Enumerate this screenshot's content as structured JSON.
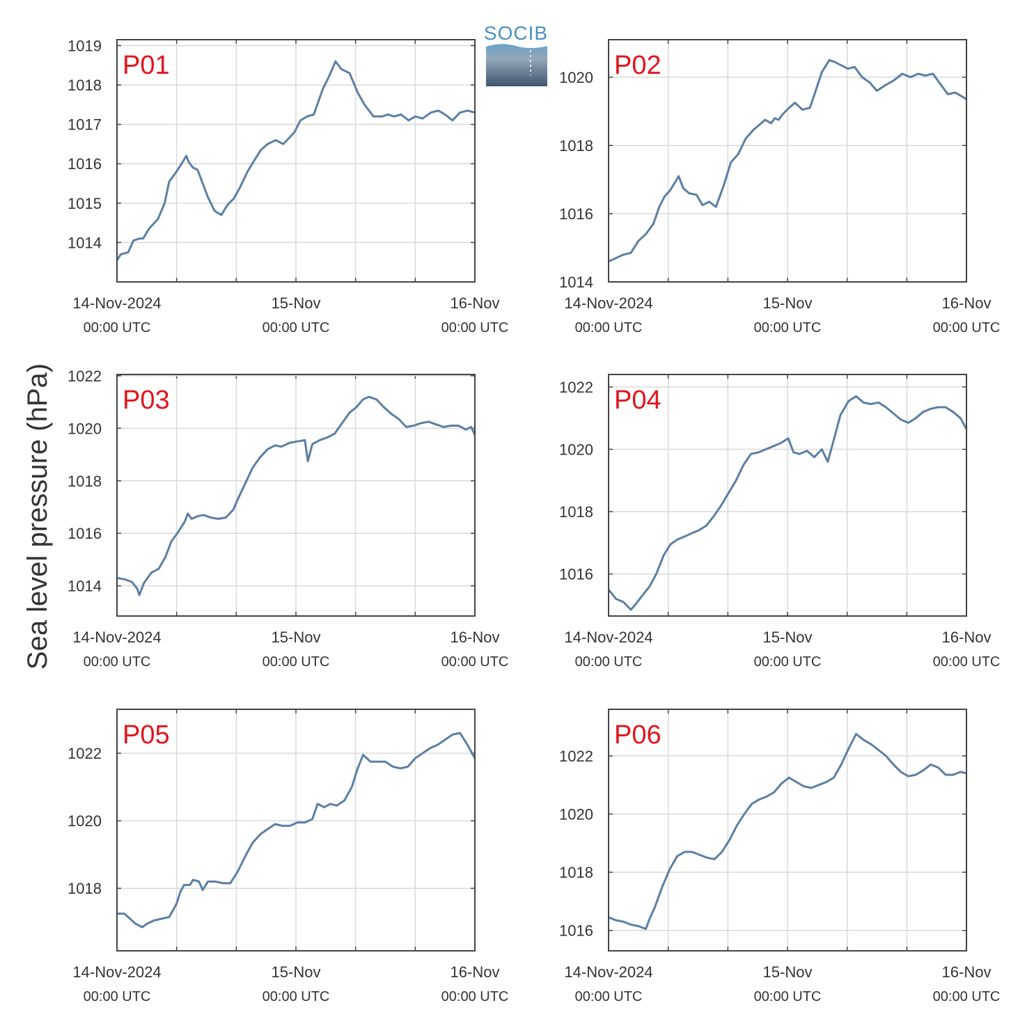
{
  "ylabel": "Sea level pressure (hPa)",
  "logo": {
    "text": "SOCIB"
  },
  "x_axis": {
    "ticks": [
      {
        "line1": "14-Nov-2024",
        "line2": "00:00 UTC",
        "hour": 0
      },
      {
        "line1": "15-Nov",
        "line2": "00:00 UTC",
        "hour": 24
      },
      {
        "line1": "16-Nov",
        "line2": "00:00 UTC",
        "hour": 48
      }
    ]
  },
  "colors": {
    "line": "#5b7fa3",
    "panel_label": "#e3141c",
    "grid": "#d9d9d9",
    "frame": "#444444"
  },
  "chart_data": [
    {
      "type": "line",
      "name": "P01",
      "grid": true,
      "xlim": [
        0,
        48
      ],
      "ylim": [
        1013,
        1019.15
      ],
      "yticks": [
        1014,
        1015,
        1016,
        1017,
        1018,
        1019
      ],
      "x": [
        0,
        0.5,
        1.5,
        2.2,
        3,
        3.5,
        4.3,
        5.5,
        6.4,
        7,
        7.8,
        8.5,
        9.3,
        9.6,
        10.2,
        10.8,
        11.5,
        12.2,
        13.1,
        14,
        14.8,
        15.3,
        15.6,
        16.5,
        17.5,
        18.3,
        19.3,
        20.2,
        21.3,
        22.3,
        23.8,
        24.6,
        25.5,
        26.4,
        27.6,
        28.4,
        29.3,
        30.1,
        31.2,
        32.3,
        33.2,
        34.4,
        35.6,
        36.3,
        37.2,
        38.1,
        39.1,
        40,
        41,
        42.1,
        43.1,
        44,
        45,
        46,
        47,
        48
      ],
      "values": [
        1013.55,
        1013.7,
        1013.75,
        1014.05,
        1014.1,
        1014.1,
        1014.35,
        1014.6,
        1015,
        1015.55,
        1015.75,
        1015.95,
        1016.2,
        1016.05,
        1015.9,
        1015.85,
        1015.5,
        1015.15,
        1014.8,
        1014.7,
        1014.95,
        1015.05,
        1015.1,
        1015.4,
        1015.8,
        1016.05,
        1016.35,
        1016.5,
        1016.6,
        1016.5,
        1016.8,
        1017.1,
        1017.2,
        1017.25,
        1017.9,
        1018.2,
        1018.6,
        1018.4,
        1018.3,
        1017.8,
        1017.5,
        1017.2,
        1017.2,
        1017.25,
        1017.2,
        1017.25,
        1017.1,
        1017.2,
        1017.15,
        1017.3,
        1017.35,
        1017.25,
        1017.1,
        1017.3,
        1017.35,
        1017.3
      ]
    },
    {
      "type": "line",
      "name": "P02",
      "grid": true,
      "xlim": [
        0,
        48
      ],
      "ylim": [
        1014,
        1021.1
      ],
      "yticks": [
        1014,
        1016,
        1018,
        1020
      ],
      "x": [
        0,
        1,
        2,
        3,
        4,
        5,
        6,
        6.8,
        7.5,
        8.3,
        9,
        9.4,
        10,
        10.8,
        11.8,
        12.6,
        13.5,
        14.4,
        15.4,
        16.4,
        17.4,
        18.4,
        19.4,
        20.2,
        21,
        21.8,
        22.3,
        22.8,
        23.3,
        24.2,
        25,
        26,
        27,
        27.7,
        28.6,
        29.6,
        30.3,
        31.2,
        32.1,
        33,
        34,
        35,
        36,
        37,
        38.2,
        39.4,
        40.5,
        41.5,
        42.5,
        43.5,
        44.5,
        45.5,
        46.5,
        47.3,
        48
      ],
      "values": [
        1014.6,
        1014.7,
        1014.8,
        1014.85,
        1015.2,
        1015.4,
        1015.7,
        1016.2,
        1016.5,
        1016.7,
        1016.95,
        1017.1,
        1016.75,
        1016.6,
        1016.55,
        1016.25,
        1016.35,
        1016.2,
        1016.8,
        1017.5,
        1017.75,
        1018.2,
        1018.45,
        1018.6,
        1018.75,
        1018.65,
        1018.8,
        1018.75,
        1018.9,
        1019.1,
        1019.25,
        1019.05,
        1019.1,
        1019.55,
        1020.15,
        1020.5,
        1020.45,
        1020.35,
        1020.25,
        1020.3,
        1020.0,
        1019.85,
        1019.6,
        1019.75,
        1019.9,
        1020.1,
        1020.0,
        1020.1,
        1020.05,
        1020.1,
        1019.8,
        1019.5,
        1019.55,
        1019.45,
        1019.35
      ]
    },
    {
      "type": "line",
      "name": "P03",
      "grid": true,
      "xlim": [
        0,
        48
      ],
      "ylim": [
        1012.85,
        1022.05
      ],
      "yticks": [
        1014,
        1016,
        1018,
        1020,
        1022
      ],
      "x": [
        0,
        1,
        2,
        2.7,
        3,
        3.6,
        4.6,
        5.6,
        6.5,
        7.3,
        8.1,
        9.1,
        9.5,
        10,
        10.8,
        11.6,
        12.6,
        13.6,
        14.6,
        15.6,
        16.2,
        17.2,
        18.2,
        19.2,
        20.2,
        21.2,
        22,
        22.8,
        23.2,
        24.2,
        25.2,
        25.6,
        26.2,
        27.2,
        28.2,
        29.2,
        30.2,
        31.2,
        32.1,
        33,
        33.8,
        34.8,
        35.8,
        36.8,
        37.8,
        38.8,
        39.8,
        40.8,
        41.8,
        42.8,
        43.8,
        44.8,
        45.8,
        46.8,
        47.5,
        48
      ],
      "values": [
        1014.3,
        1014.25,
        1014.15,
        1013.9,
        1013.65,
        1014.1,
        1014.5,
        1014.65,
        1015.1,
        1015.7,
        1016.0,
        1016.45,
        1016.75,
        1016.55,
        1016.65,
        1016.7,
        1016.6,
        1016.55,
        1016.6,
        1016.9,
        1017.3,
        1017.9,
        1018.5,
        1018.9,
        1019.2,
        1019.35,
        1019.3,
        1019.4,
        1019.45,
        1019.5,
        1019.55,
        1018.75,
        1019.4,
        1019.55,
        1019.65,
        1019.8,
        1020.2,
        1020.6,
        1020.8,
        1021.1,
        1021.2,
        1021.1,
        1020.8,
        1020.55,
        1020.35,
        1020.05,
        1020.1,
        1020.2,
        1020.25,
        1020.15,
        1020.05,
        1020.1,
        1020.1,
        1019.95,
        1020.05,
        1019.75
      ]
    },
    {
      "type": "line",
      "name": "P04",
      "grid": true,
      "xlim": [
        0,
        48
      ],
      "ylim": [
        1014.65,
        1022.4
      ],
      "yticks": [
        1016,
        1018,
        1020,
        1022
      ],
      "x": [
        0,
        1,
        2,
        3,
        3.7,
        4.5,
        5.5,
        6.4,
        7.4,
        8.3,
        9.2,
        10.2,
        11.1,
        12.1,
        13.1,
        14.1,
        15.1,
        16.1,
        17.1,
        18.1,
        19.1,
        20.1,
        21.1,
        22.1,
        23.1,
        24.1,
        24.8,
        25.6,
        26.6,
        27.6,
        28.6,
        29.4,
        30.2,
        31.1,
        32.2,
        33.2,
        34.2,
        35.2,
        36.2,
        37.2,
        38.2,
        39.2,
        40.2,
        41.2,
        42.2,
        43.2,
        44.2,
        45.2,
        46.2,
        47.2,
        48
      ],
      "values": [
        1015.5,
        1015.2,
        1015.1,
        1014.85,
        1015.05,
        1015.3,
        1015.6,
        1016.0,
        1016.6,
        1016.95,
        1017.1,
        1017.2,
        1017.3,
        1017.4,
        1017.55,
        1017.85,
        1018.2,
        1018.6,
        1019.0,
        1019.5,
        1019.85,
        1019.9,
        1020.0,
        1020.1,
        1020.2,
        1020.35,
        1019.9,
        1019.85,
        1019.95,
        1019.75,
        1020.0,
        1019.6,
        1020.3,
        1021.1,
        1021.55,
        1021.7,
        1021.5,
        1021.45,
        1021.5,
        1021.35,
        1021.15,
        1020.95,
        1020.85,
        1021.0,
        1021.2,
        1021.3,
        1021.35,
        1021.35,
        1021.2,
        1021.0,
        1020.65
      ]
    },
    {
      "type": "line",
      "name": "P05",
      "grid": true,
      "xlim": [
        0,
        48
      ],
      "ylim": [
        1016.15,
        1023.3
      ],
      "yticks": [
        1018,
        1020,
        1022
      ],
      "x": [
        0,
        1,
        2,
        2.5,
        3.4,
        4,
        5,
        6,
        7,
        8,
        8.5,
        9,
        9.8,
        10.2,
        11,
        11.5,
        12.2,
        13.2,
        14.2,
        15.2,
        16.2,
        17.2,
        18.2,
        19.2,
        20.2,
        21.2,
        22.2,
        23.2,
        24.2,
        25.2,
        26.2,
        26.9,
        27.8,
        28.6,
        29.5,
        30.5,
        31.5,
        32.2,
        33,
        34,
        35,
        36,
        37,
        38,
        39,
        40,
        41,
        42,
        43,
        44,
        45,
        46,
        47,
        48
      ],
      "values": [
        1017.25,
        1017.25,
        1017.05,
        1016.95,
        1016.85,
        1016.95,
        1017.05,
        1017.1,
        1017.15,
        1017.55,
        1017.9,
        1018.1,
        1018.1,
        1018.25,
        1018.2,
        1017.95,
        1018.2,
        1018.2,
        1018.15,
        1018.15,
        1018.5,
        1018.95,
        1019.35,
        1019.6,
        1019.75,
        1019.9,
        1019.85,
        1019.85,
        1019.95,
        1019.95,
        1020.05,
        1020.5,
        1020.4,
        1020.5,
        1020.45,
        1020.6,
        1021.0,
        1021.5,
        1021.95,
        1021.75,
        1021.75,
        1021.75,
        1021.6,
        1021.55,
        1021.6,
        1021.85,
        1022.0,
        1022.15,
        1022.25,
        1022.4,
        1022.55,
        1022.6,
        1022.25,
        1021.85
      ]
    },
    {
      "type": "line",
      "name": "P06",
      "grid": true,
      "xlim": [
        0,
        48
      ],
      "ylim": [
        1015.3,
        1023.6
      ],
      "yticks": [
        1016,
        1018,
        1020,
        1022
      ],
      "x": [
        0,
        1,
        2,
        3,
        4,
        5,
        5.5,
        6.2,
        7.2,
        8.2,
        9.2,
        10.2,
        11.2,
        12.2,
        13.2,
        14.2,
        15.2,
        16.2,
        17.2,
        18.2,
        19.2,
        20.2,
        21.2,
        22.2,
        23.2,
        24.2,
        25.2,
        26.2,
        27.2,
        28.2,
        29.2,
        30.2,
        31.2,
        32.2,
        33.2,
        34.2,
        35.2,
        36.2,
        37.2,
        38.2,
        39.2,
        40.2,
        41.2,
        42.2,
        43.2,
        44.2,
        45.2,
        46.2,
        47.2,
        48
      ],
      "values": [
        1016.45,
        1016.35,
        1016.3,
        1016.2,
        1016.15,
        1016.05,
        1016.4,
        1016.8,
        1017.5,
        1018.1,
        1018.55,
        1018.7,
        1018.7,
        1018.6,
        1018.5,
        1018.45,
        1018.7,
        1019.1,
        1019.6,
        1020.0,
        1020.35,
        1020.5,
        1020.6,
        1020.75,
        1021.05,
        1021.25,
        1021.1,
        1020.95,
        1020.9,
        1021.0,
        1021.1,
        1021.25,
        1021.7,
        1022.25,
        1022.75,
        1022.55,
        1022.4,
        1022.2,
        1022.0,
        1021.7,
        1021.45,
        1021.3,
        1021.35,
        1021.5,
        1021.7,
        1021.6,
        1021.35,
        1021.35,
        1021.45,
        1021.4
      ]
    }
  ]
}
